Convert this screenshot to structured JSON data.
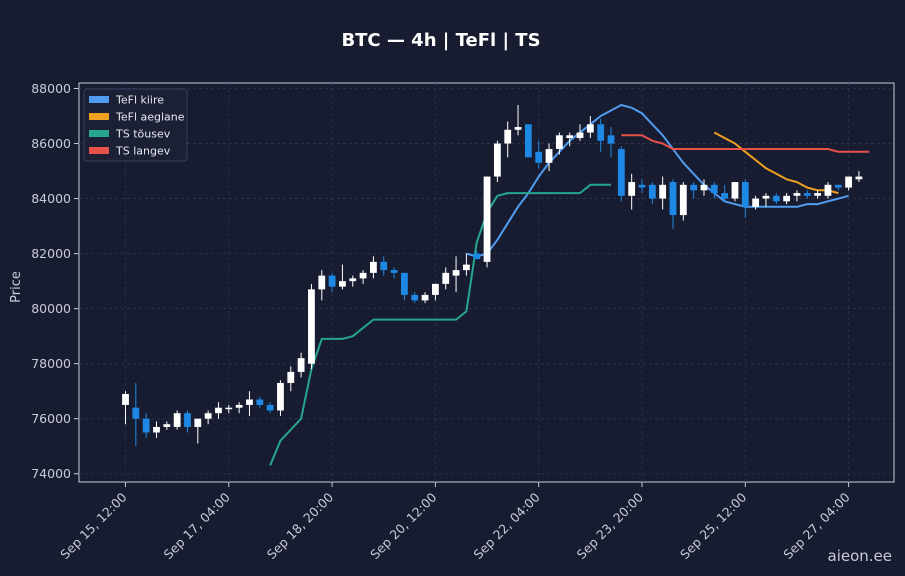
{
  "chart_data": {
    "type": "candlestick",
    "title": "BTC — 4h  |  TeFl  |  TS",
    "ylabel": "Price",
    "xlabel": "",
    "ylim": [
      73700,
      88200
    ],
    "yticks": [
      74000,
      76000,
      78000,
      80000,
      82000,
      84000,
      86000,
      88000
    ],
    "xticks": [
      {
        "label": "Sep 15, 12:00",
        "i": 0
      },
      {
        "label": "Sep 17, 04:00",
        "i": 10
      },
      {
        "label": "Sep 18, 20:00",
        "i": 20
      },
      {
        "label": "Sep 20, 12:00",
        "i": 30
      },
      {
        "label": "Sep 22, 04:00",
        "i": 40
      },
      {
        "label": "Sep 23, 20:00",
        "i": 50
      },
      {
        "label": "Sep 25, 12:00",
        "i": 60
      },
      {
        "label": "Sep 27, 04:00",
        "i": 70
      }
    ],
    "grid": true,
    "legend": {
      "placement": "top-left",
      "entries": [
        {
          "name": "TeFl kiire",
          "color": "#4f9cf0"
        },
        {
          "name": "TeFl aeglane",
          "color": "#f0a020"
        },
        {
          "name": "TS tõusev",
          "color": "#26a68f"
        },
        {
          "name": "TS langev",
          "color": "#e8504a"
        }
      ]
    },
    "colors": {
      "up": "#ffffff",
      "down": "#1e88e5"
    },
    "candles": [
      [
        76500,
        77000,
        75800,
        76900
      ],
      [
        76400,
        77300,
        75000,
        76000
      ],
      [
        76000,
        76200,
        75300,
        75500
      ],
      [
        75500,
        75900,
        75300,
        75700
      ],
      [
        75700,
        75900,
        75600,
        75800
      ],
      [
        75700,
        76300,
        75600,
        76200
      ],
      [
        76200,
        76300,
        75500,
        75700
      ],
      [
        75700,
        76000,
        75100,
        76000
      ],
      [
        76000,
        76300,
        75800,
        76200
      ],
      [
        76200,
        76600,
        76000,
        76400
      ],
      [
        76400,
        76500,
        76200,
        76400
      ],
      [
        76400,
        76600,
        76200,
        76500
      ],
      [
        76500,
        77000,
        76100,
        76700
      ],
      [
        76700,
        76800,
        76400,
        76500
      ],
      [
        76500,
        76600,
        76200,
        76300
      ],
      [
        76300,
        77400,
        76100,
        77300
      ],
      [
        77300,
        77900,
        77000,
        77700
      ],
      [
        77700,
        78400,
        77500,
        78200
      ],
      [
        78000,
        80900,
        77800,
        80700
      ],
      [
        80700,
        81400,
        80300,
        81200
      ],
      [
        81200,
        81300,
        80600,
        80800
      ],
      [
        80800,
        81600,
        80700,
        81000
      ],
      [
        81000,
        81200,
        80800,
        81100
      ],
      [
        81100,
        81400,
        80900,
        81300
      ],
      [
        81300,
        81900,
        81100,
        81700
      ],
      [
        81700,
        81900,
        81200,
        81400
      ],
      [
        81400,
        81500,
        81100,
        81300
      ],
      [
        81300,
        81300,
        80300,
        80500
      ],
      [
        80500,
        80600,
        80200,
        80300
      ],
      [
        80300,
        80600,
        80200,
        80500
      ],
      [
        80500,
        80900,
        80300,
        80900
      ],
      [
        80900,
        81500,
        80700,
        81300
      ],
      [
        81200,
        81900,
        80600,
        81400
      ],
      [
        81400,
        82000,
        81200,
        81600
      ],
      [
        82000,
        82100,
        81800,
        81800
      ],
      [
        81700,
        84800,
        81500,
        84800
      ],
      [
        84800,
        86100,
        84600,
        86000
      ],
      [
        86000,
        86800,
        85500,
        86500
      ],
      [
        86500,
        87400,
        86300,
        86600
      ],
      [
        86700,
        86700,
        85600,
        85500
      ],
      [
        85700,
        86100,
        85100,
        85300
      ],
      [
        85300,
        86000,
        85000,
        85800
      ],
      [
        85800,
        86400,
        85600,
        86300
      ],
      [
        86200,
        86400,
        85900,
        86300
      ],
      [
        86200,
        86700,
        86100,
        86400
      ],
      [
        86400,
        87000,
        86200,
        86700
      ],
      [
        86700,
        86900,
        85700,
        86100
      ],
      [
        86300,
        86600,
        85500,
        86000
      ],
      [
        85800,
        85900,
        83900,
        84100
      ],
      [
        84100,
        84900,
        83600,
        84600
      ],
      [
        84500,
        84700,
        84200,
        84400
      ],
      [
        84500,
        84600,
        83800,
        84000
      ],
      [
        84000,
        84800,
        83600,
        84500
      ],
      [
        84600,
        84700,
        82900,
        83400
      ],
      [
        83400,
        84600,
        83200,
        84500
      ],
      [
        84500,
        84600,
        84000,
        84300
      ],
      [
        84300,
        84700,
        84100,
        84500
      ],
      [
        84500,
        84600,
        84000,
        84200
      ],
      [
        84200,
        84500,
        83900,
        84000
      ],
      [
        84000,
        84600,
        83900,
        84600
      ],
      [
        84600,
        84700,
        83300,
        83700
      ],
      [
        83700,
        84100,
        83600,
        84000
      ],
      [
        84000,
        84200,
        83700,
        84100
      ],
      [
        84100,
        84200,
        83800,
        83900
      ],
      [
        83900,
        84200,
        83800,
        84100
      ],
      [
        84100,
        84300,
        83900,
        84200
      ],
      [
        84200,
        84300,
        84000,
        84100
      ],
      [
        84100,
        84300,
        84000,
        84200
      ],
      [
        84100,
        84600,
        84000,
        84500
      ],
      [
        84500,
        84500,
        84300,
        84400
      ],
      [
        84400,
        84800,
        84300,
        84800
      ],
      [
        84700,
        85000,
        84600,
        84800
      ]
    ],
    "series": [
      {
        "key": "tefl_fast",
        "color": "#4f9cf0",
        "start": 33,
        "values": [
          82000,
          81900,
          82000,
          82500,
          83100,
          83700,
          84200,
          84800,
          85300,
          85700,
          86100,
          86400,
          86700,
          87000,
          87200,
          87400,
          87300,
          87100,
          86700,
          86300,
          85800,
          85300,
          84900,
          84500,
          84200,
          83900,
          83800,
          83700,
          83700,
          83700,
          83700,
          83700,
          83700,
          83800,
          83800,
          83900,
          84000,
          84100
        ]
      },
      {
        "key": "tefl_slow",
        "color": "#f0a020",
        "start": 57,
        "values": [
          86400,
          86200,
          86000,
          85700,
          85400,
          85100,
          84900,
          84700,
          84600,
          84400,
          84300,
          84300,
          84200
        ]
      },
      {
        "key": "ts_up",
        "color": "#26a68f",
        "start": 14,
        "values": [
          74300,
          75200,
          75600,
          76000,
          77800,
          78900,
          78900,
          78900,
          79000,
          79300,
          79600,
          79600,
          79600,
          79600,
          79600,
          79600,
          79600,
          79600,
          79600,
          79900,
          82400,
          83500,
          84100,
          84200,
          84200,
          84200,
          84200,
          84200,
          84200,
          84200,
          84200,
          84500,
          84500,
          84500
        ]
      },
      {
        "key": "ts_down",
        "color": "#e8504a",
        "start": 48,
        "values": [
          86300,
          86300,
          86300,
          86100,
          86000,
          85800,
          85800,
          85800,
          85800,
          85800,
          85800,
          85800,
          85800,
          85800,
          85800,
          85800,
          85800,
          85800,
          85800,
          85800,
          85800,
          85700,
          85700,
          85700,
          85700
        ]
      }
    ]
  },
  "watermark": "aieon.ee"
}
